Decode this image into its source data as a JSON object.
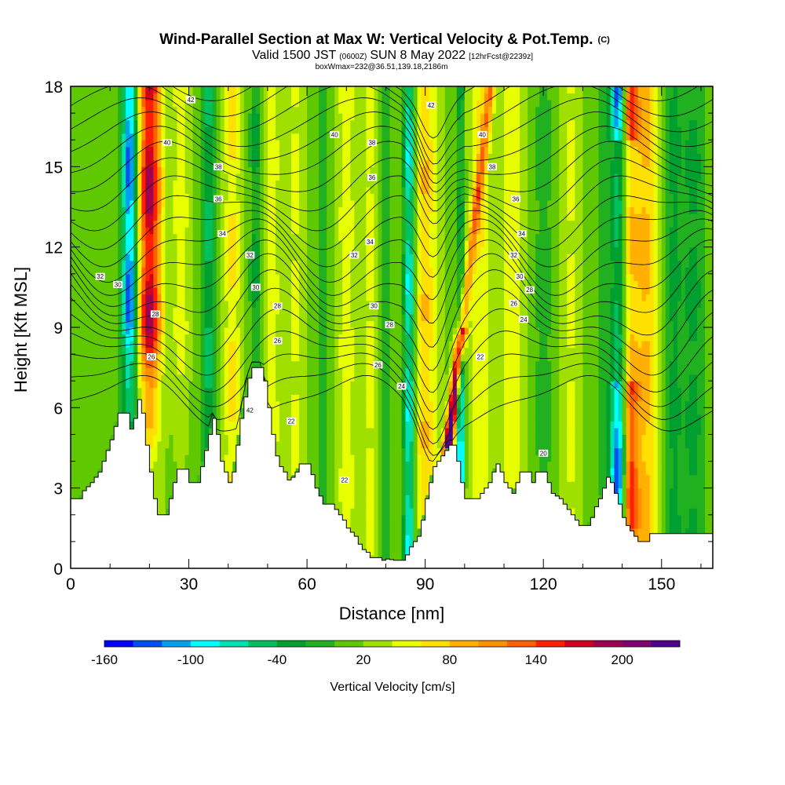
{
  "header": {
    "title": "Wind-Parallel Section at Max W: Vertical Velocity & Pot.Temp.",
    "title_mark": "(C)",
    "valid_prefix": "Valid 1500 JST",
    "valid_utc": "(0600Z)",
    "valid_date": "SUN 8 May 2022",
    "valid_fcst": "[12hrFcst@2239z]",
    "box_line": "boxWmax=232@36.51,139.18,2186m"
  },
  "chart_data": {
    "type": "heatmap",
    "xlabel": "Distance [nm]",
    "ylabel": "Height [Kft MSL]",
    "xlim": [
      0,
      163
    ],
    "ylim": [
      0,
      18
    ],
    "x_ticks": [
      0,
      30,
      60,
      90,
      120,
      150
    ],
    "y_ticks": [
      0,
      3,
      6,
      9,
      12,
      15,
      18
    ],
    "grid": false,
    "colorbar": {
      "label": "Vertical Velocity [cm/s]",
      "placement": "bottom",
      "tick_labels": [
        -160,
        -100,
        -40,
        20,
        80,
        140,
        200
      ],
      "colors": [
        "#0000ff",
        "#0050f0",
        "#00a0f0",
        "#00ffff",
        "#00e0b0",
        "#00c060",
        "#00a030",
        "#20b020",
        "#60c800",
        "#a0e000",
        "#e8ff00",
        "#ffe000",
        "#ffb000",
        "#ff9000",
        "#ff6000",
        "#ff2000",
        "#d00020",
        "#a00050",
        "#800070",
        "#500090"
      ]
    },
    "field_columns": [
      {
        "x": 8,
        "w": 1,
        "width": 3
      },
      {
        "x": 15,
        "w": -140,
        "width": 2
      },
      {
        "x": 20,
        "w": 160,
        "width": 3
      },
      {
        "x": 28,
        "w": 40,
        "width": 2
      },
      {
        "x": 35,
        "w": -60,
        "width": 1.5
      },
      {
        "x": 41,
        "w": 50,
        "width": 2
      },
      {
        "x": 47,
        "w": -40,
        "width": 1.5
      },
      {
        "x": 51,
        "w": 40,
        "width": 2
      },
      {
        "x": 57,
        "w": 30,
        "width": 2
      },
      {
        "x": 64,
        "w": -20,
        "width": 2
      },
      {
        "x": 70,
        "w": 40,
        "width": 2
      },
      {
        "x": 76,
        "w": 30,
        "width": 2.5
      },
      {
        "x": 80,
        "w": -30,
        "width": 1.5
      },
      {
        "x": 86,
        "w": -100,
        "width": 1.5
      },
      {
        "x": 90,
        "w": 60,
        "width": 3
      },
      {
        "x": 97,
        "w": 232,
        "width": 1.2
      },
      {
        "x": 99,
        "w": -130,
        "width": 1
      },
      {
        "x": 104,
        "w": 40,
        "width": 3
      },
      {
        "x": 112,
        "w": 40,
        "width": 3
      },
      {
        "x": 120,
        "w": -30,
        "width": 2
      },
      {
        "x": 127,
        "w": 30,
        "width": 2
      },
      {
        "x": 135,
        "w": -20,
        "width": 2
      },
      {
        "x": 139,
        "w": -140,
        "width": 2
      },
      {
        "x": 142,
        "w": 120,
        "width": 2
      },
      {
        "x": 146,
        "w": 70,
        "width": 3
      },
      {
        "x": 153,
        "w": -40,
        "width": 2
      },
      {
        "x": 158,
        "w": -40,
        "width": 3
      }
    ],
    "terrain": [
      [
        0,
        2.6
      ],
      [
        2,
        2.6
      ],
      [
        3,
        2.9
      ],
      [
        5,
        3.2
      ],
      [
        7,
        3.6
      ],
      [
        8,
        4.0
      ],
      [
        9,
        4.4
      ],
      [
        10,
        4.8
      ],
      [
        11,
        5.3
      ],
      [
        12,
        5.8
      ],
      [
        14,
        5.8
      ],
      [
        15,
        5.2
      ],
      [
        16,
        5.6
      ],
      [
        17,
        6.3
      ],
      [
        18,
        5.8
      ],
      [
        19,
        4.6
      ],
      [
        20,
        3.6
      ],
      [
        21,
        2.6
      ],
      [
        22,
        2.0
      ],
      [
        24,
        2.0
      ],
      [
        25,
        2.6
      ],
      [
        26,
        3.2
      ],
      [
        27,
        3.7
      ],
      [
        29,
        3.7
      ],
      [
        30,
        3.2
      ],
      [
        32,
        3.2
      ],
      [
        33,
        3.8
      ],
      [
        34,
        4.4
      ],
      [
        35,
        5.0
      ],
      [
        36,
        5.6
      ],
      [
        37,
        5.0
      ],
      [
        38,
        4.0
      ],
      [
        40,
        3.2
      ],
      [
        41,
        3.6
      ],
      [
        42,
        4.6
      ],
      [
        43,
        5.6
      ],
      [
        44,
        6.4
      ],
      [
        45,
        7.1
      ],
      [
        46,
        7.5
      ],
      [
        48,
        7.5
      ],
      [
        49,
        7.0
      ],
      [
        50,
        6.0
      ],
      [
        51,
        5.0
      ],
      [
        52,
        4.2
      ],
      [
        53,
        3.8
      ],
      [
        54,
        3.6
      ],
      [
        55,
        3.3
      ],
      [
        56,
        3.4
      ],
      [
        57,
        3.6
      ],
      [
        58,
        3.9
      ],
      [
        60,
        3.9
      ],
      [
        61,
        3.5
      ],
      [
        62,
        3.0
      ],
      [
        63,
        2.7
      ],
      [
        64,
        2.4
      ],
      [
        66,
        2.4
      ],
      [
        67,
        2.2
      ],
      [
        68,
        2.0
      ],
      [
        69,
        1.8
      ],
      [
        70,
        1.5
      ],
      [
        72,
        1.2
      ],
      [
        73,
        0.9
      ],
      [
        74,
        0.7
      ],
      [
        75,
        0.6
      ],
      [
        76,
        0.4
      ],
      [
        78,
        0.4
      ],
      [
        79,
        0.3
      ],
      [
        80,
        0.35
      ],
      [
        82,
        0.3
      ],
      [
        84,
        0.3
      ],
      [
        85,
        0.5
      ],
      [
        86,
        0.8
      ],
      [
        88,
        1.2
      ],
      [
        89,
        1.8
      ],
      [
        90,
        2.6
      ],
      [
        91,
        3.2
      ],
      [
        92,
        3.8
      ],
      [
        94,
        4.2
      ],
      [
        96,
        4.6
      ],
      [
        97,
        4.6
      ],
      [
        98,
        4.0
      ],
      [
        99,
        3.2
      ],
      [
        100,
        2.6
      ],
      [
        101,
        2.6
      ],
      [
        103,
        2.6
      ],
      [
        104,
        2.8
      ],
      [
        106,
        3.2
      ],
      [
        107,
        3.6
      ],
      [
        108,
        3.9
      ],
      [
        109,
        3.6
      ],
      [
        110,
        3.2
      ],
      [
        111,
        3.0
      ],
      [
        112,
        2.8
      ],
      [
        113,
        3.2
      ],
      [
        114,
        3.6
      ],
      [
        116,
        3.6
      ],
      [
        117,
        3.2
      ],
      [
        118,
        3.6
      ],
      [
        120,
        3.6
      ],
      [
        121,
        3.2
      ],
      [
        122,
        2.8
      ],
      [
        124,
        2.6
      ],
      [
        125,
        2.4
      ],
      [
        126,
        2.2
      ],
      [
        127,
        2.0
      ],
      [
        128,
        1.8
      ],
      [
        129,
        1.6
      ],
      [
        131,
        1.6
      ],
      [
        132,
        1.9
      ],
      [
        133,
        2.3
      ],
      [
        134,
        2.6
      ],
      [
        135,
        3.0
      ],
      [
        136,
        3.4
      ],
      [
        137,
        3.2
      ],
      [
        138,
        2.8
      ],
      [
        139,
        2.4
      ],
      [
        140,
        1.9
      ],
      [
        141,
        1.6
      ],
      [
        142,
        1.4
      ],
      [
        143,
        1.2
      ],
      [
        144,
        1.0
      ],
      [
        146,
        1.0
      ],
      [
        147,
        1.3
      ],
      [
        150,
        1.3
      ],
      [
        163,
        1.3
      ]
    ],
    "contour_labels": [
      {
        "text": "42",
        "x": 30.5,
        "y": 17.5
      },
      {
        "text": "40",
        "x": 24.5,
        "y": 15.9
      },
      {
        "text": "38",
        "x": 37.5,
        "y": 15.0
      },
      {
        "text": "36",
        "x": 37.5,
        "y": 13.8
      },
      {
        "text": "34",
        "x": 38.5,
        "y": 12.5
      },
      {
        "text": "32",
        "x": 45.5,
        "y": 11.7
      },
      {
        "text": "32",
        "x": 7.5,
        "y": 10.9
      },
      {
        "text": "30",
        "x": 12,
        "y": 10.6
      },
      {
        "text": "30",
        "x": 47,
        "y": 10.5
      },
      {
        "text": "28",
        "x": 21.5,
        "y": 9.5
      },
      {
        "text": "28",
        "x": 52.5,
        "y": 9.8
      },
      {
        "text": "26",
        "x": 20.5,
        "y": 7.9
      },
      {
        "text": "26",
        "x": 52.5,
        "y": 8.5
      },
      {
        "text": "42",
        "x": 45.5,
        "y": 5.9
      },
      {
        "text": "22",
        "x": 56,
        "y": 5.5
      },
      {
        "text": "22",
        "x": 69.5,
        "y": 3.3
      },
      {
        "text": "40",
        "x": 67,
        "y": 16.2
      },
      {
        "text": "38",
        "x": 76.5,
        "y": 15.9
      },
      {
        "text": "36",
        "x": 76.5,
        "y": 14.6
      },
      {
        "text": "34",
        "x": 76,
        "y": 12.2
      },
      {
        "text": "32",
        "x": 72,
        "y": 11.7
      },
      {
        "text": "30",
        "x": 77,
        "y": 9.8
      },
      {
        "text": "28",
        "x": 81,
        "y": 9.1
      },
      {
        "text": "26",
        "x": 78,
        "y": 7.6
      },
      {
        "text": "24",
        "x": 84,
        "y": 6.8
      },
      {
        "text": "42",
        "x": 91.5,
        "y": 17.3
      },
      {
        "text": "40",
        "x": 104.5,
        "y": 16.2
      },
      {
        "text": "38",
        "x": 107,
        "y": 15.0
      },
      {
        "text": "36",
        "x": 113,
        "y": 13.8
      },
      {
        "text": "34",
        "x": 114.5,
        "y": 12.5
      },
      {
        "text": "32",
        "x": 112.5,
        "y": 11.7
      },
      {
        "text": "30",
        "x": 114,
        "y": 10.9
      },
      {
        "text": "28",
        "x": 116.5,
        "y": 10.4
      },
      {
        "text": "26",
        "x": 112.5,
        "y": 9.9
      },
      {
        "text": "24",
        "x": 115,
        "y": 9.3
      },
      {
        "text": "22",
        "x": 104,
        "y": 7.9
      },
      {
        "text": "20",
        "x": 120,
        "y": 4.3
      }
    ]
  }
}
